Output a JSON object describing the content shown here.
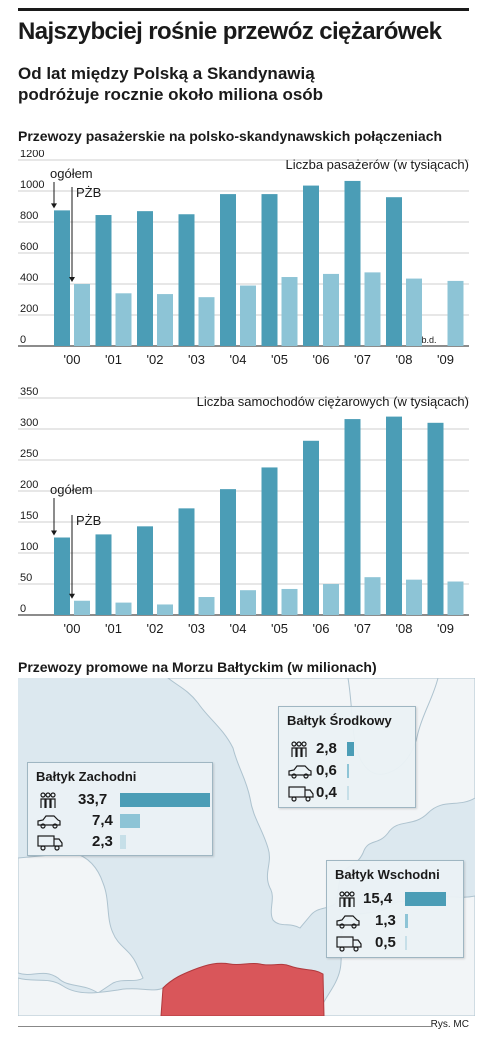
{
  "headline": "Najszybciej rośnie przewóz ciężarówek",
  "subtitle": "Od lat między Polską a Skandynawią podróżuje rocznie około miliona osób",
  "section1_title": "Przewozy pasażerskie na polsko-skandynawskich połączeniach",
  "section2_title": "Przewozy promowe na Morzu Bałtyckim (w milionach)",
  "credit": "Rys. MC",
  "colors": {
    "total": "#4b9db6",
    "pzb": "#8dc4d6",
    "poland": "#d9565a",
    "sea": "#dce8ef",
    "land": "#f2f5f7"
  },
  "chart_data": [
    {
      "type": "bar",
      "title": "Liczba pasażerów (w tysiącach)",
      "categories": [
        "'00",
        "'01",
        "'02",
        "'03",
        "'04",
        "'05",
        "'06",
        "'07",
        "'08",
        "'09"
      ],
      "yticks": [
        "0",
        "200",
        "400",
        "600",
        "800",
        "1000",
        "1200"
      ],
      "ylim": [
        0,
        1200
      ],
      "grid": true,
      "series": [
        {
          "name": "ogółem",
          "values": [
            875,
            845,
            870,
            850,
            980,
            980,
            1035,
            1065,
            960,
            null
          ]
        },
        {
          "name": "PŻB",
          "values": [
            400,
            340,
            335,
            315,
            390,
            445,
            465,
            475,
            435,
            420
          ]
        }
      ],
      "annotation": "b.d."
    },
    {
      "type": "bar",
      "title": "Liczba samochodów ciężarowych (w tysiącach)",
      "categories": [
        "'00",
        "'01",
        "'02",
        "'03",
        "'04",
        "'05",
        "'06",
        "'07",
        "'08",
        "'09"
      ],
      "yticks": [
        "0",
        "50",
        "100",
        "150",
        "200",
        "250",
        "300",
        "350"
      ],
      "ylim": [
        0,
        350
      ],
      "grid": true,
      "series": [
        {
          "name": "ogółem",
          "values": [
            125,
            130,
            143,
            172,
            203,
            238,
            281,
            316,
            320,
            310
          ]
        },
        {
          "name": "PŻB",
          "values": [
            23,
            20,
            17,
            29,
            40,
            42,
            50,
            61,
            57,
            54
          ]
        }
      ]
    },
    {
      "type": "bar",
      "title": "Przewozy promowe na Morzu Bałtyckim (w milionach)",
      "regions": [
        {
          "name": "Bałtyk Zachodni",
          "items": [
            {
              "icon": "people-icon",
              "value": 33.7,
              "label": "33,7"
            },
            {
              "icon": "car-icon",
              "value": 7.4,
              "label": "7,4"
            },
            {
              "icon": "truck-icon",
              "value": 2.3,
              "label": "2,3"
            }
          ]
        },
        {
          "name": "Bałtyk Środkowy",
          "items": [
            {
              "icon": "people-icon",
              "value": 2.8,
              "label": "2,8"
            },
            {
              "icon": "car-icon",
              "value": 0.6,
              "label": "0,6"
            },
            {
              "icon": "truck-icon",
              "value": 0.4,
              "label": "0,4"
            }
          ]
        },
        {
          "name": "Bałtyk Wschodni",
          "items": [
            {
              "icon": "people-icon",
              "value": 15.4,
              "label": "15,4"
            },
            {
              "icon": "car-icon",
              "value": 1.3,
              "label": "1,3"
            },
            {
              "icon": "truck-icon",
              "value": 0.5,
              "label": "0,5"
            }
          ]
        }
      ]
    }
  ]
}
